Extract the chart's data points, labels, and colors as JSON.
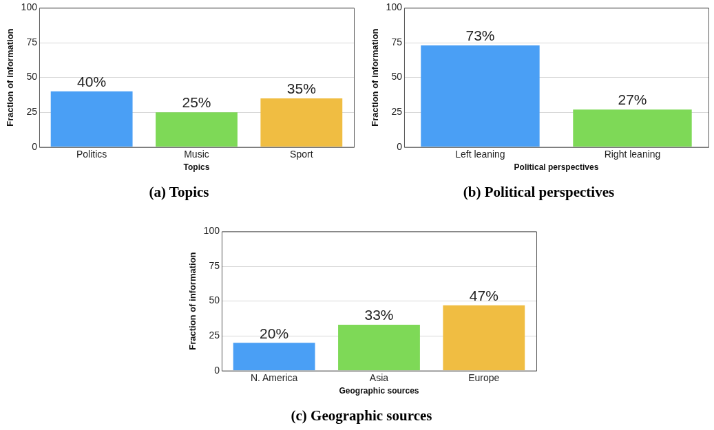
{
  "chart_data": [
    {
      "type": "bar",
      "title": "(a) Topics",
      "xlabel": "Topics",
      "ylabel": "Fraction of information",
      "categories": [
        "Politics",
        "Music",
        "Sport"
      ],
      "values": [
        40,
        25,
        35
      ],
      "colors": [
        "#4a9ff5",
        "#7ed957",
        "#f0bd42"
      ],
      "value_labels": [
        "40%",
        "25%",
        "35%"
      ],
      "ylim": [
        0,
        100
      ],
      "yticks": [
        0,
        25,
        50,
        75,
        100
      ],
      "grid": "y"
    },
    {
      "type": "bar",
      "title": "(b) Political perspectives",
      "xlabel": "Political perspectives",
      "ylabel": "Fraction of information",
      "categories": [
        "Left leaning",
        "Right leaning"
      ],
      "values": [
        73,
        27
      ],
      "colors": [
        "#4a9ff5",
        "#7ed957"
      ],
      "value_labels": [
        "73%",
        "27%"
      ],
      "ylim": [
        0,
        100
      ],
      "yticks": [
        0,
        25,
        50,
        75,
        100
      ],
      "grid": "y"
    },
    {
      "type": "bar",
      "title": "(c) Geographic sources",
      "xlabel": "Geographic sources",
      "ylabel": "Fraction of information",
      "categories": [
        "N. America",
        "Asia",
        "Europe"
      ],
      "values": [
        20,
        33,
        47
      ],
      "colors": [
        "#4a9ff5",
        "#7ed957",
        "#f0bd42"
      ],
      "value_labels": [
        "20%",
        "33%",
        "47%"
      ],
      "ylim": [
        0,
        100
      ],
      "yticks": [
        0,
        25,
        50,
        75,
        100
      ],
      "grid": "y"
    }
  ]
}
